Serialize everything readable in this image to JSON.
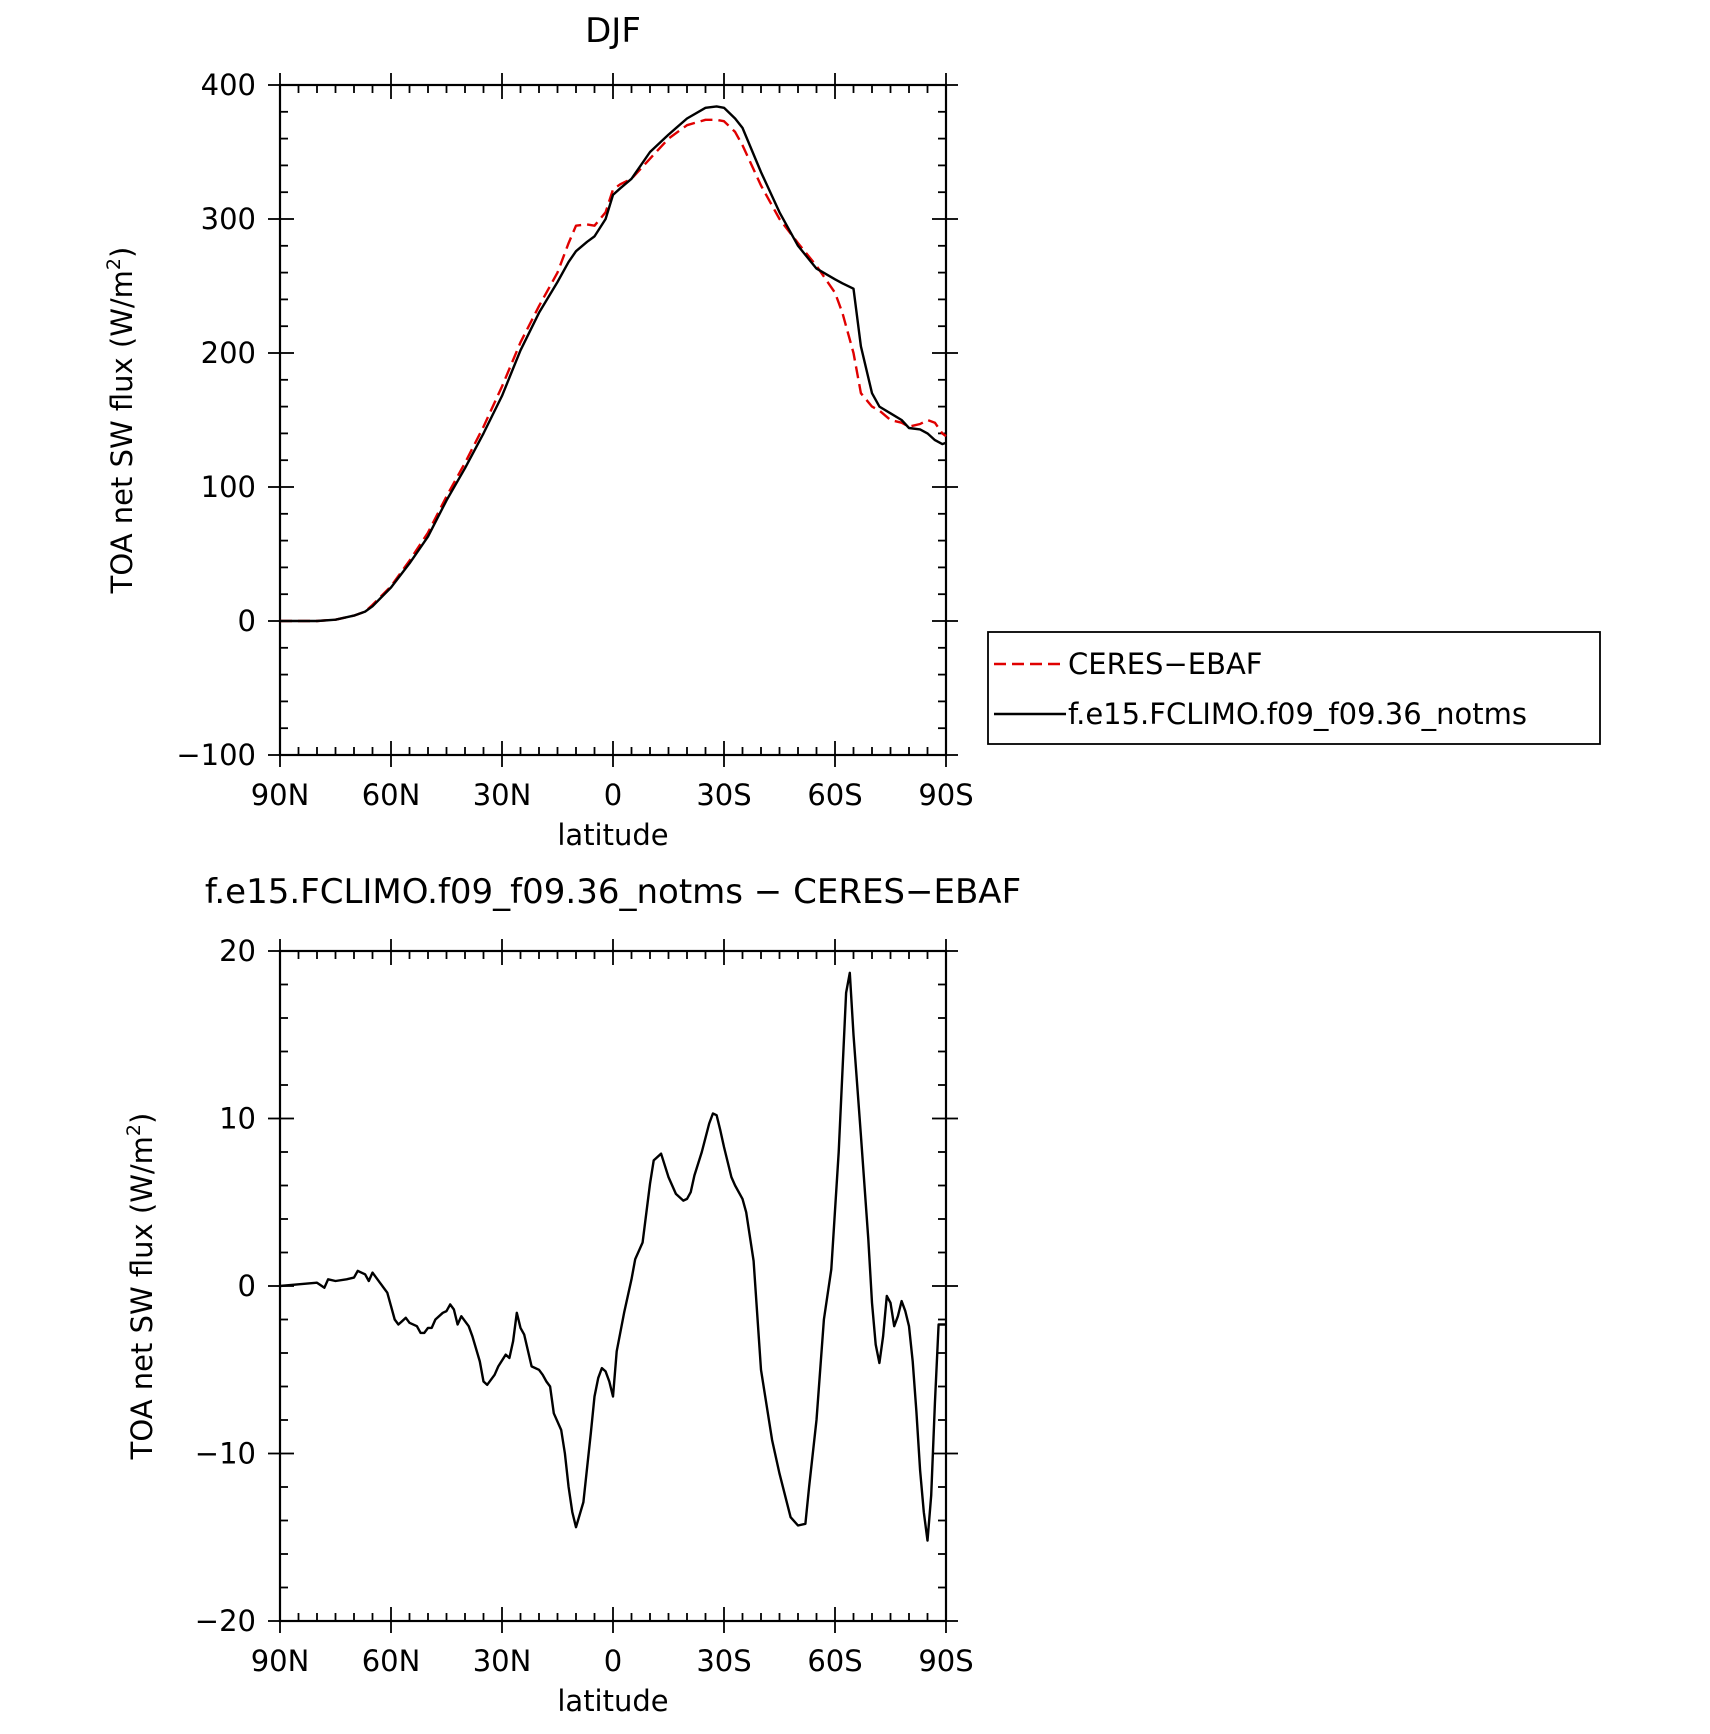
{
  "chart_data": [
    {
      "type": "line",
      "title": "DJF",
      "xlabel": "latitude",
      "ylabel": "TOA net SW flux (W/m²)",
      "xlim": [
        90,
        -90
      ],
      "ylim": [
        -100,
        400
      ],
      "x_ticks": [
        90,
        60,
        30,
        0,
        -30,
        -60,
        -90
      ],
      "x_tick_labels": [
        "90N",
        "60N",
        "30N",
        "0",
        "30S",
        "60S",
        "90S"
      ],
      "y_ticks": [
        -100,
        0,
        100,
        200,
        300,
        400
      ],
      "y_tick_labels": [
        "−100",
        "0",
        "100",
        "200",
        "300",
        "400"
      ],
      "legend": {
        "placement": "right-outside",
        "entries": [
          "CERES−EBAF",
          "f.e15.FCLIMO.f09_f09.36_notms"
        ]
      },
      "series": [
        {
          "name": "CERES−EBAF",
          "color": "#e00000",
          "dash": "dashed",
          "x": [
            90,
            85,
            80,
            75,
            70,
            67,
            65,
            60,
            55,
            50,
            45,
            40,
            35,
            30,
            25,
            20,
            15,
            12,
            10,
            7,
            5,
            2,
            0,
            -2,
            -5,
            -10,
            -15,
            -20,
            -25,
            -28,
            -30,
            -33,
            -35,
            -40,
            -45,
            -50,
            -55,
            -60,
            -62,
            -65,
            -67,
            -70,
            -72,
            -75,
            -78,
            -80,
            -83,
            -85,
            -87,
            -89,
            -90
          ],
          "y": [
            0,
            0,
            0,
            1,
            4,
            7,
            12,
            26,
            45,
            66,
            93,
            118,
            145,
            175,
            208,
            235,
            260,
            282,
            295,
            296,
            295,
            305,
            322,
            326,
            330,
            345,
            360,
            370,
            374,
            374,
            373,
            365,
            355,
            325,
            300,
            282,
            265,
            245,
            230,
            200,
            170,
            160,
            157,
            150,
            148,
            145,
            147,
            150,
            148,
            140,
            138
          ]
        },
        {
          "name": "f.e15.FCLIMO.f09_f09.36_notms",
          "color": "#000000",
          "dash": "solid",
          "x": [
            90,
            85,
            80,
            75,
            70,
            67,
            65,
            60,
            55,
            50,
            45,
            40,
            35,
            30,
            25,
            20,
            15,
            12,
            10,
            7,
            5,
            2,
            0,
            -2,
            -5,
            -10,
            -15,
            -20,
            -25,
            -28,
            -30,
            -33,
            -35,
            -40,
            -45,
            -50,
            -55,
            -60,
            -62,
            -65,
            -67,
            -70,
            -72,
            -75,
            -78,
            -80,
            -83,
            -85,
            -87,
            -89,
            -90
          ],
          "y": [
            0,
            0,
            0,
            1,
            4,
            7,
            11,
            25,
            43,
            63,
            90,
            114,
            140,
            168,
            202,
            230,
            253,
            268,
            276,
            283,
            287,
            300,
            318,
            323,
            330,
            350,
            363,
            375,
            383,
            384,
            383,
            375,
            368,
            335,
            305,
            280,
            263,
            255,
            252,
            248,
            205,
            170,
            160,
            155,
            150,
            144,
            143,
            140,
            135,
            132,
            133
          ]
        }
      ]
    },
    {
      "type": "line",
      "title": "f.e15.FCLIMO.f09_f09.36_notms − CERES−EBAF",
      "xlabel": "latitude",
      "ylabel": "TOA net SW flux (W/m²)",
      "xlim": [
        90,
        -90
      ],
      "ylim": [
        -20,
        20
      ],
      "x_ticks": [
        90,
        60,
        30,
        0,
        -30,
        -60,
        -90
      ],
      "x_tick_labels": [
        "90N",
        "60N",
        "30N",
        "0",
        "30S",
        "60S",
        "90S"
      ],
      "y_ticks": [
        -20,
        -10,
        0,
        10,
        20
      ],
      "y_tick_labels": [
        "−20",
        "−10",
        "0",
        "10",
        "20"
      ],
      "series": [
        {
          "color": "#000000",
          "dash": "solid",
          "x": [
            90,
            85,
            80,
            78,
            77,
            75,
            72,
            70,
            69,
            67,
            66,
            65,
            63,
            61,
            60,
            59,
            58,
            57,
            56,
            55,
            53,
            52,
            51,
            50,
            49,
            48,
            46,
            45,
            44,
            43,
            42,
            41,
            39,
            38,
            36,
            35,
            34,
            32,
            31,
            29,
            28,
            27,
            26,
            25,
            24,
            22,
            20,
            19,
            18,
            17,
            16,
            14,
            13,
            12,
            11,
            10,
            8,
            6,
            5,
            4,
            3,
            2,
            1,
            0,
            -1,
            -3,
            -4,
            -5,
            -6,
            -8,
            -10,
            -11,
            -13,
            -15,
            -17,
            -19,
            -20,
            -21,
            -22,
            -24,
            -26,
            -27,
            -28,
            -29,
            -30,
            -32,
            -33,
            -35,
            -36,
            -38,
            -40,
            -43,
            -45,
            -48,
            -50,
            -52,
            -53,
            -55,
            -57,
            -59,
            -61,
            -63,
            -64,
            -65,
            -67,
            -69,
            -70,
            -71,
            -72,
            -73,
            -74,
            -75,
            -76,
            -77,
            -78,
            -79,
            -80,
            -81,
            -82,
            -83,
            -84,
            -85,
            -86,
            -87,
            -88,
            -89,
            -90
          ],
          "y": [
            0,
            0.1,
            0.2,
            -0.1,
            0.4,
            0.3,
            0.4,
            0.5,
            0.9,
            0.7,
            0.3,
            0.8,
            0.2,
            -0.4,
            -1.2,
            -2.0,
            -2.3,
            -2.1,
            -1.9,
            -2.2,
            -2.4,
            -2.8,
            -2.8,
            -2.5,
            -2.5,
            -2.0,
            -1.6,
            -1.5,
            -1.1,
            -1.4,
            -2.3,
            -1.8,
            -2.4,
            -3.0,
            -4.5,
            -5.7,
            -5.9,
            -5.3,
            -4.8,
            -4.1,
            -4.3,
            -3.3,
            -1.6,
            -2.5,
            -2.9,
            -4.8,
            -5.0,
            -5.3,
            -5.7,
            -6.0,
            -7.6,
            -8.6,
            -10.0,
            -12.0,
            -13.5,
            -14.4,
            -12.9,
            -8.8,
            -6.6,
            -5.5,
            -4.9,
            -5.1,
            -5.7,
            -6.6,
            -3.9,
            -1.6,
            -0.6,
            0.4,
            1.6,
            2.6,
            6.1,
            7.5,
            7.9,
            6.5,
            5.5,
            5.1,
            5.2,
            5.6,
            6.6,
            8.0,
            9.7,
            10.3,
            10.2,
            9.3,
            8.3,
            6.5,
            6.0,
            5.2,
            4.4,
            1.5,
            -5.0,
            -9.2,
            -11.2,
            -13.8,
            -14.3,
            -14.2,
            -12.0,
            -8.0,
            -2.0,
            1.0,
            8.0,
            17.5,
            18.7,
            15.0,
            9.0,
            2.8,
            -1.0,
            -3.5,
            -4.6,
            -3.0,
            -0.6,
            -1.0,
            -2.4,
            -1.8,
            -0.9,
            -1.5,
            -2.4,
            -4.5,
            -7.5,
            -11.0,
            -13.5,
            -15.2,
            -12.5,
            -7.0,
            -2.3,
            -2.3,
            -2.3
          ]
        }
      ]
    }
  ]
}
